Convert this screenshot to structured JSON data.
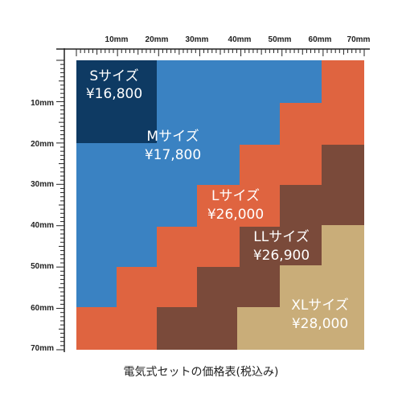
{
  "caption": "電気式セットの価格表(税込み)",
  "ruler": {
    "unit": "mm",
    "top_labels": [
      "10mm",
      "20mm",
      "30mm",
      "40mm",
      "50mm",
      "60mm",
      "70mm"
    ],
    "left_labels": [
      "10mm",
      "20mm",
      "30mm",
      "40mm",
      "50mm",
      "60mm",
      "70mm"
    ]
  },
  "sizes": [
    {
      "id": "s",
      "name": "Sサイズ",
      "price": "¥16,800",
      "color": "#0e3a63"
    },
    {
      "id": "m",
      "name": "Mサイズ",
      "price": "¥17,800",
      "color": "#3a82c2"
    },
    {
      "id": "l",
      "name": "Lサイズ",
      "price": "¥26,000",
      "color": "#df6440"
    },
    {
      "id": "ll",
      "name": "LLサイズ",
      "price": "¥26,900",
      "color": "#7a4a3a"
    },
    {
      "id": "xl",
      "name": "XLサイズ",
      "price": "¥28,000",
      "color": "#c9ad79"
    }
  ],
  "colors": {
    "ruler_line": "#222222",
    "background": "#ffffff"
  }
}
